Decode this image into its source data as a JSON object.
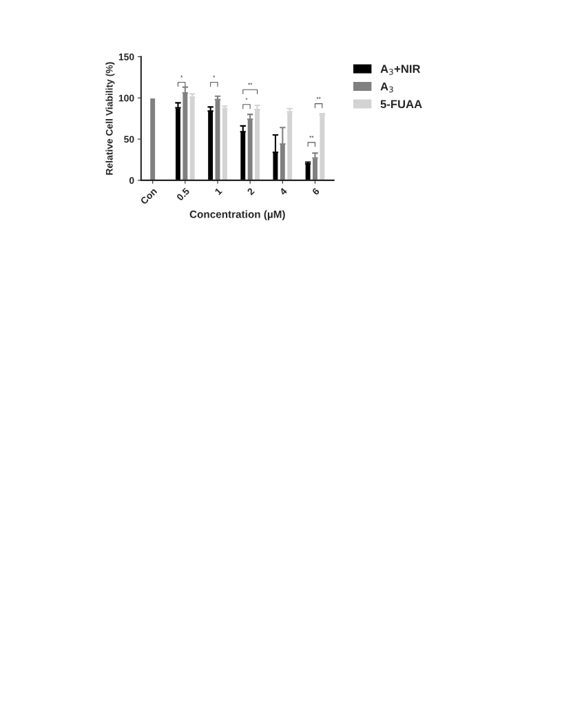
{
  "chart_data": {
    "type": "bar",
    "xlabel": "Concentration (µM)",
    "ylabel": "Relative Cell Viability (%)",
    "categories": [
      "Con",
      "0.5",
      "1",
      "2",
      "4",
      "6"
    ],
    "series": [
      {
        "name": "A$_{3}$+NIR",
        "color": "#000000",
        "values": [
          null,
          88,
          84,
          59,
          34,
          20
        ],
        "errors": [
          null,
          [
            88,
            94
          ],
          [
            84,
            89
          ],
          [
            59,
            66
          ],
          [
            34,
            55
          ],
          [
            20,
            22
          ]
        ]
      },
      {
        "name": "A$_{3}$",
        "color": "#808080",
        "values": [
          100,
          106,
          98,
          74,
          44,
          27
        ],
        "errors": [
          null,
          [
            106,
            113
          ],
          [
            98,
            102
          ],
          [
            74,
            80
          ],
          [
            44,
            64
          ],
          [
            27,
            33
          ]
        ]
      },
      {
        "name": "5-FUAA",
        "color": "#d3d3d3",
        "values": [
          null,
          101,
          87,
          86,
          83,
          79
        ],
        "errors": [
          null,
          [
            101,
            105
          ],
          [
            87,
            90
          ],
          [
            86,
            91
          ],
          [
            83,
            87
          ],
          [
            79,
            81
          ]
        ]
      }
    ],
    "ylim": [
      0,
      150
    ],
    "yticks": [
      0,
      50,
      100,
      150
    ],
    "grid": false,
    "legend": "top right",
    "annotations": [
      "*",
      "*",
      "**",
      "*",
      "**",
      "**"
    ]
  }
}
